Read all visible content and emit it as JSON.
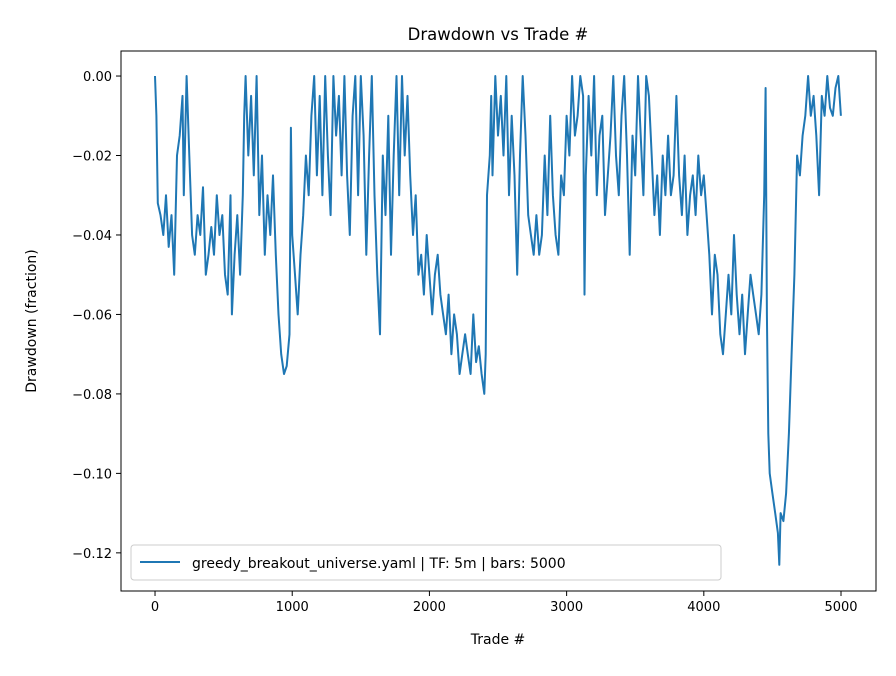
{
  "chart_data": {
    "type": "line",
    "title": "Drawdown vs Trade #",
    "xlabel": "Trade #",
    "ylabel": "Drawdown (fraction)",
    "xlim": [
      -248,
      5255
    ],
    "ylim": [
      -0.1296,
      0.0063
    ],
    "xticks": [
      0,
      1000,
      2000,
      3000,
      4000,
      5000
    ],
    "xtick_labels": [
      "0",
      "1000",
      "2000",
      "3000",
      "4000",
      "5000"
    ],
    "yticks": [
      0,
      -0.02,
      -0.04,
      -0.06,
      -0.08,
      -0.1,
      -0.12
    ],
    "ytick_labels": [
      "0.00",
      "−0.02",
      "−0.04",
      "−0.06",
      "−0.08",
      "−0.10",
      "−0.12"
    ],
    "grid": false,
    "legend_position": "lower-left",
    "series": [
      {
        "name": "greedy_breakout_universe.yaml | TF: 5m | bars: 5000",
        "color": "#1f77b4",
        "x": [
          0,
          10,
          20,
          40,
          60,
          80,
          100,
          120,
          140,
          160,
          180,
          200,
          210,
          230,
          250,
          270,
          290,
          310,
          330,
          350,
          370,
          390,
          410,
          430,
          450,
          470,
          490,
          510,
          530,
          550,
          560,
          580,
          600,
          620,
          640,
          650,
          660,
          680,
          700,
          720,
          740,
          760,
          780,
          800,
          820,
          840,
          860,
          880,
          900,
          920,
          940,
          960,
          980,
          990,
          1000,
          1020,
          1040,
          1060,
          1080,
          1100,
          1120,
          1140,
          1160,
          1180,
          1200,
          1220,
          1240,
          1260,
          1280,
          1300,
          1320,
          1340,
          1360,
          1380,
          1400,
          1420,
          1440,
          1460,
          1480,
          1500,
          1520,
          1540,
          1560,
          1580,
          1600,
          1620,
          1640,
          1660,
          1680,
          1700,
          1720,
          1740,
          1760,
          1780,
          1800,
          1820,
          1840,
          1860,
          1880,
          1900,
          1920,
          1940,
          1960,
          1980,
          2000,
          2020,
          2040,
          2060,
          2080,
          2100,
          2120,
          2140,
          2160,
          2180,
          2200,
          2220,
          2240,
          2260,
          2280,
          2300,
          2320,
          2340,
          2360,
          2380,
          2400,
          2410,
          2420,
          2440,
          2450,
          2460,
          2480,
          2500,
          2520,
          2540,
          2560,
          2580,
          2600,
          2620,
          2640,
          2660,
          2680,
          2700,
          2720,
          2740,
          2760,
          2780,
          2800,
          2820,
          2840,
          2860,
          2880,
          2900,
          2920,
          2940,
          2960,
          2980,
          3000,
          3020,
          3040,
          3060,
          3080,
          3100,
          3120,
          3130,
          3140,
          3160,
          3180,
          3200,
          3220,
          3240,
          3260,
          3280,
          3300,
          3320,
          3340,
          3360,
          3380,
          3400,
          3420,
          3440,
          3460,
          3480,
          3500,
          3520,
          3540,
          3560,
          3580,
          3600,
          3620,
          3640,
          3660,
          3680,
          3700,
          3720,
          3740,
          3760,
          3780,
          3800,
          3820,
          3840,
          3860,
          3880,
          3900,
          3920,
          3940,
          3960,
          3980,
          4000,
          4020,
          4040,
          4060,
          4080,
          4100,
          4120,
          4140,
          4160,
          4180,
          4200,
          4220,
          4240,
          4260,
          4280,
          4300,
          4320,
          4340,
          4360,
          4380,
          4400,
          4420,
          4440,
          4450,
          4460,
          4470,
          4480,
          4500,
          4520,
          4540,
          4550,
          4560,
          4580,
          4600,
          4620,
          4640,
          4660,
          4680,
          4700,
          4720,
          4740,
          4760,
          4780,
          4800,
          4820,
          4840,
          4860,
          4880,
          4900,
          4920,
          4940,
          4960,
          4980,
          4999
        ],
        "y": [
          0,
          -0.01,
          -0.032,
          -0.035,
          -0.04,
          -0.03,
          -0.043,
          -0.035,
          -0.05,
          -0.02,
          -0.015,
          -0.005,
          -0.03,
          0,
          -0.02,
          -0.04,
          -0.045,
          -0.035,
          -0.04,
          -0.028,
          -0.05,
          -0.045,
          -0.038,
          -0.045,
          -0.03,
          -0.04,
          -0.035,
          -0.05,
          -0.055,
          -0.03,
          -0.06,
          -0.045,
          -0.035,
          -0.05,
          -0.03,
          -0.01,
          0,
          -0.02,
          -0.005,
          -0.025,
          0,
          -0.035,
          -0.02,
          -0.045,
          -0.03,
          -0.04,
          -0.025,
          -0.045,
          -0.06,
          -0.07,
          -0.075,
          -0.073,
          -0.065,
          -0.013,
          -0.04,
          -0.05,
          -0.06,
          -0.045,
          -0.035,
          -0.02,
          -0.03,
          -0.01,
          0,
          -0.025,
          -0.005,
          -0.03,
          0,
          -0.02,
          -0.035,
          0,
          -0.015,
          -0.005,
          -0.025,
          0,
          -0.025,
          -0.04,
          -0.01,
          0,
          -0.03,
          0,
          -0.015,
          -0.045,
          -0.02,
          0,
          -0.03,
          -0.05,
          -0.065,
          -0.02,
          -0.035,
          -0.01,
          -0.045,
          -0.02,
          0,
          -0.03,
          0,
          -0.02,
          -0.005,
          -0.025,
          -0.04,
          -0.03,
          -0.05,
          -0.045,
          -0.055,
          -0.04,
          -0.05,
          -0.06,
          -0.05,
          -0.045,
          -0.055,
          -0.06,
          -0.065,
          -0.055,
          -0.07,
          -0.06,
          -0.065,
          -0.075,
          -0.07,
          -0.065,
          -0.07,
          -0.075,
          -0.06,
          -0.072,
          -0.068,
          -0.075,
          -0.08,
          -0.07,
          -0.03,
          -0.02,
          -0.005,
          -0.025,
          0,
          -0.015,
          -0.005,
          -0.02,
          0,
          -0.03,
          -0.01,
          -0.025,
          -0.05,
          -0.02,
          0,
          -0.015,
          -0.035,
          -0.04,
          -0.045,
          -0.035,
          -0.045,
          -0.04,
          -0.02,
          -0.035,
          -0.01,
          -0.03,
          -0.04,
          -0.045,
          -0.025,
          -0.03,
          -0.01,
          -0.02,
          0,
          -0.015,
          -0.01,
          0,
          -0.005,
          -0.055,
          -0.025,
          -0.005,
          -0.02,
          0,
          -0.03,
          -0.015,
          -0.01,
          -0.035,
          -0.025,
          -0.015,
          0,
          -0.02,
          -0.03,
          -0.01,
          0,
          -0.02,
          -0.045,
          -0.015,
          -0.025,
          0,
          -0.015,
          -0.03,
          0,
          -0.005,
          -0.02,
          -0.035,
          -0.025,
          -0.04,
          -0.02,
          -0.03,
          -0.015,
          -0.03,
          -0.025,
          -0.005,
          -0.025,
          -0.035,
          -0.02,
          -0.04,
          -0.03,
          -0.025,
          -0.035,
          -0.02,
          -0.03,
          -0.025,
          -0.035,
          -0.045,
          -0.06,
          -0.045,
          -0.05,
          -0.065,
          -0.07,
          -0.06,
          -0.05,
          -0.06,
          -0.04,
          -0.055,
          -0.065,
          -0.055,
          -0.07,
          -0.06,
          -0.05,
          -0.055,
          -0.06,
          -0.065,
          -0.055,
          -0.03,
          -0.003,
          -0.06,
          -0.09,
          -0.1,
          -0.105,
          -0.11,
          -0.115,
          -0.123,
          -0.11,
          -0.112,
          -0.105,
          -0.09,
          -0.07,
          -0.05,
          -0.02,
          -0.025,
          -0.015,
          -0.01,
          0,
          -0.01,
          -0.005,
          -0.015,
          -0.03,
          -0.005,
          -0.01,
          0,
          -0.008,
          -0.01,
          -0.003,
          0,
          -0.01
        ]
      }
    ]
  }
}
